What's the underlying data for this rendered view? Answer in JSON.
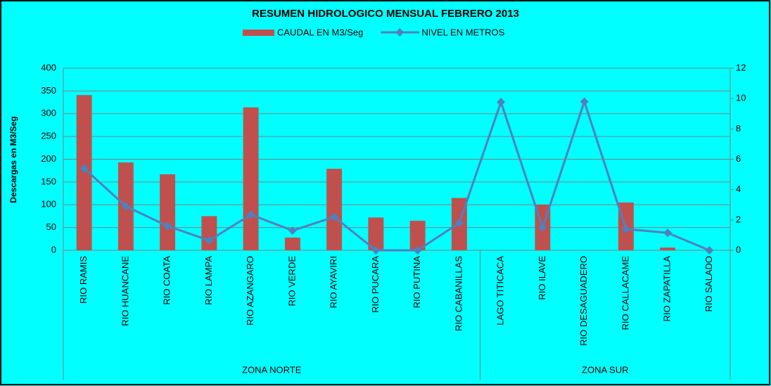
{
  "chart_data": {
    "type": "bar_line",
    "title": "RESUMEN HIDROLOGICO MENSUAL FEBRERO 2013",
    "y_label": "Descargas en M3/Seg",
    "groups": [
      {
        "name": "ZONA NORTE",
        "categories": [
          "RIO RAMIS",
          "RIO HUANCANE",
          "RIO COATA",
          "RIO LAMPA",
          "RIO  AZANGARO",
          "RIO VERDE",
          "RIO  AYAVIRI",
          "RIO PUCARA",
          "RIO PUTINA",
          "RIO CABANILLAS"
        ]
      },
      {
        "name": "ZONA SUR",
        "categories": [
          "LAGO TITICACA",
          "RIO ILAVE",
          "RIO DESAGUADERO",
          "RIO CALLACAME",
          "RIO ZAPATILLA",
          "RIO SALADO"
        ]
      }
    ],
    "series": [
      {
        "name": "CAUDAL EN M3/Seg",
        "type": "bar",
        "color": "#c0504d",
        "values": [
          341,
          193,
          167,
          75,
          314,
          28,
          179,
          72,
          65,
          115,
          null,
          100,
          null,
          105,
          6,
          null
        ]
      },
      {
        "name": "NIVEL EN METROS",
        "type": "line",
        "axis": "y2",
        "color": "#4f81bd",
        "values": [
          5.4,
          2.9,
          1.6,
          0.65,
          2.35,
          1.3,
          2.2,
          0,
          0,
          1.8,
          9.77,
          1.5,
          9.8,
          1.4,
          1.15,
          0
        ]
      }
    ],
    "ylim": [
      0,
      400
    ],
    "yticks": [
      0,
      50,
      100,
      150,
      200,
      250,
      300,
      350,
      400
    ],
    "y2lim": [
      0,
      12
    ],
    "y2ticks": [
      0,
      2,
      4,
      6,
      8,
      10,
      12
    ],
    "grid": true
  }
}
